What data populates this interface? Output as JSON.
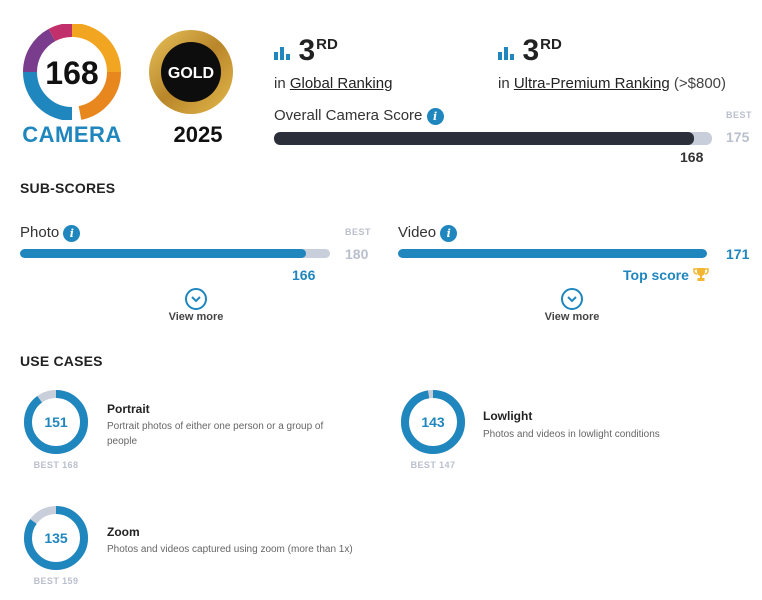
{
  "badge": {
    "score": "168",
    "category": "CAMERA",
    "award": "GOLD",
    "year": "2025",
    "colors": {
      "blue": "#1f86be",
      "orange": "#f2a521",
      "purple": "#7a3c8c",
      "pink": "#c2306b",
      "gold": "#c89b2c"
    }
  },
  "rankings": [
    {
      "icon": "bar-chart-icon",
      "rank": "3",
      "suffix": "RD",
      "prefix": "in ",
      "link": "Global Ranking",
      "extra": ""
    },
    {
      "icon": "bar-chart-icon",
      "rank": "3",
      "suffix": "RD",
      "prefix": "in ",
      "link": "Ultra-Premium Ranking",
      "extra": " (>$800)"
    }
  ],
  "overall": {
    "label": "Overall Camera Score",
    "score": "168",
    "best_label": "BEST",
    "best": "175",
    "fill_fraction": 0.96
  },
  "subscores": {
    "title": "SUB-SCORES",
    "photo": {
      "label": "Photo",
      "score": "166",
      "best_label": "BEST",
      "best": "180",
      "fill_fraction": 0.922,
      "view_more": "View more"
    },
    "video": {
      "label": "Video",
      "score": "171",
      "top_score": "Top score",
      "fill_fraction": 1.0,
      "view_more": "View more"
    }
  },
  "use_cases": {
    "title": "USE CASES",
    "items": [
      {
        "name": "Portrait",
        "score": "151",
        "best": "BEST 168",
        "fraction": 0.899,
        "desc_lines": [
          "Portrait photos of either one person or a group of",
          "people"
        ]
      },
      {
        "name": "Lowlight",
        "score": "143",
        "best": "BEST 147",
        "fraction": 0.973,
        "desc_lines": [
          "Photos and videos in lowlight conditions"
        ]
      },
      {
        "name": "Zoom",
        "score": "135",
        "best": "BEST 159",
        "fraction": 0.849,
        "desc_lines": [
          "Photos and videos captured using zoom (more than 1x)"
        ]
      }
    ]
  },
  "colors": {
    "accent": "#1f86be",
    "dark_bar": "#2b2f3a",
    "track": "#c9cedb",
    "muted": "#b9bfcc",
    "trophy": "#f2b630"
  }
}
